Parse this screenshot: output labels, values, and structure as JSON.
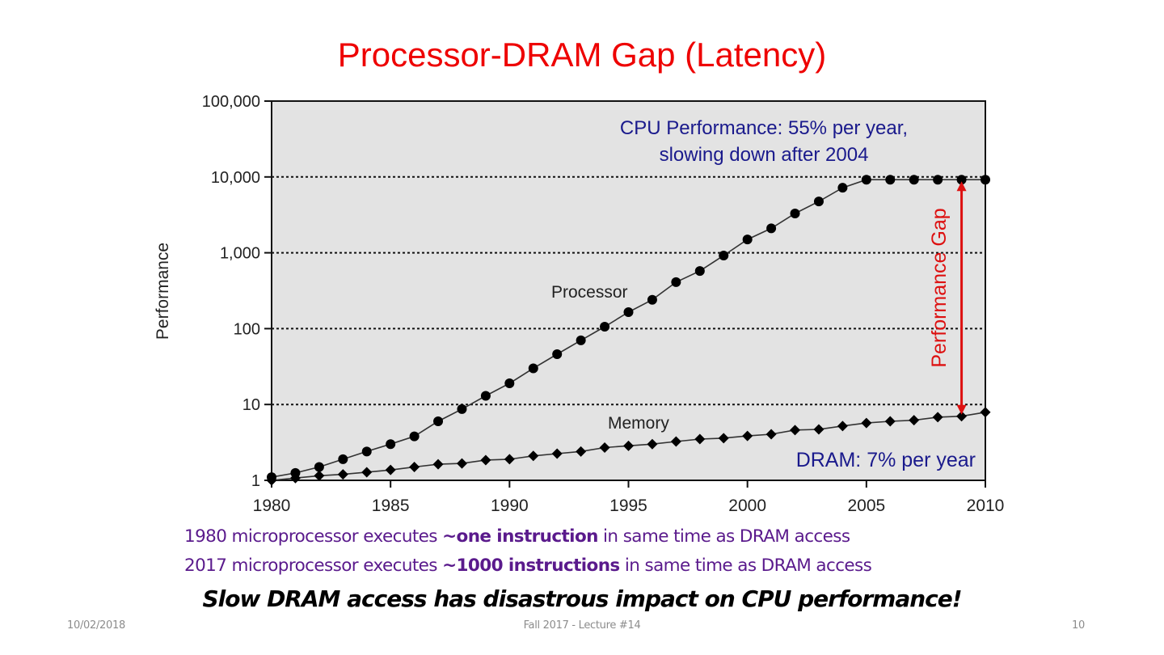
{
  "slide": {
    "title": "Processor-DRAM Gap (Latency)",
    "bullets": [
      {
        "pre": "1980 microprocessor executes ",
        "bold": "~one instruction",
        "post": " in same time as DRAM access"
      },
      {
        "pre": "2017 microprocessor executes ",
        "bold": "~1000 instructions",
        "post": " in same time as DRAM access"
      }
    ],
    "punchline": "Slow DRAM access has disastrous impact on CPU performance!",
    "footer": {
      "date": "10/02/2018",
      "center": "Fall 2017 - Lecture #14",
      "page": "10"
    },
    "colors": {
      "title": "#ee0000",
      "bullets": "#5a1a8c",
      "annotation": "#1a1a8c",
      "gap_arrow": "#dd1111",
      "plot_bg": "#e3e3e3"
    }
  },
  "chart_data": {
    "type": "line",
    "title": "",
    "xlabel": "",
    "ylabel": "Performance",
    "yscale": "log",
    "xlim": [
      1980,
      2010
    ],
    "ylim": [
      1,
      100000
    ],
    "xticks": [
      1980,
      1985,
      1990,
      1995,
      2000,
      2005,
      2010
    ],
    "xtick_labels": [
      "1980",
      "1985",
      "1990",
      "1995",
      "2000",
      "2005",
      "2010"
    ],
    "yticks": [
      1,
      10,
      100,
      1000,
      10000,
      100000
    ],
    "ytick_labels": [
      "1",
      "10",
      "100",
      "1,000",
      "10,000",
      "100,000"
    ],
    "grid": "horizontal dotted at major y ticks",
    "x": [
      1980,
      1981,
      1982,
      1983,
      1984,
      1985,
      1986,
      1987,
      1988,
      1989,
      1990,
      1991,
      1992,
      1993,
      1994,
      1995,
      1996,
      1997,
      1998,
      1999,
      2000,
      2001,
      2002,
      2003,
      2004,
      2005,
      2006,
      2007,
      2008,
      2009,
      2010
    ],
    "series": [
      {
        "name": "Processor",
        "marker": "circle",
        "values": [
          1.1,
          1.25,
          1.5,
          1.9,
          2.4,
          3,
          3.8,
          6,
          8.7,
          13,
          19,
          30,
          46,
          70,
          106,
          165,
          240,
          410,
          575,
          920,
          1500,
          2100,
          3300,
          4750,
          7200,
          9200,
          9200,
          9200,
          9200,
          9200,
          9200
        ]
      },
      {
        "name": "Memory",
        "marker": "diamond",
        "values": [
          1,
          1.07,
          1.15,
          1.2,
          1.28,
          1.37,
          1.5,
          1.63,
          1.67,
          1.85,
          1.9,
          2.1,
          2.25,
          2.4,
          2.7,
          2.85,
          3.0,
          3.25,
          3.5,
          3.6,
          3.85,
          4.05,
          4.6,
          4.7,
          5.2,
          5.7,
          6.0,
          6.2,
          6.8,
          7.0,
          7.9
        ]
      }
    ],
    "annotations": [
      {
        "text": "CPU Performance: 55% per year,",
        "kind": "note"
      },
      {
        "text": "slowing down after 2004",
        "kind": "note"
      },
      {
        "text": "Processor",
        "kind": "series-label"
      },
      {
        "text": "Memory",
        "kind": "series-label"
      },
      {
        "text": "DRAM: 7% per year",
        "kind": "note"
      },
      {
        "text": "Performance Gap",
        "kind": "arrow-label",
        "x": 2009,
        "from": 7.0,
        "to": 9200
      }
    ]
  }
}
